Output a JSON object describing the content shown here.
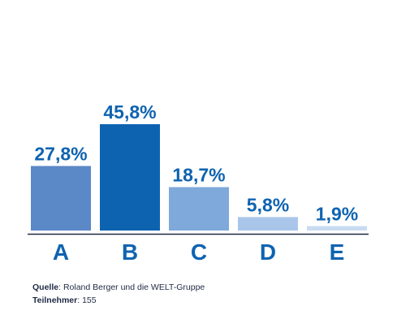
{
  "chart_data": {
    "type": "bar",
    "categories": [
      "A",
      "B",
      "C",
      "D",
      "E"
    ],
    "values": [
      27.8,
      45.8,
      18.7,
      5.8,
      1.9
    ],
    "value_labels": [
      "27,8%",
      "45,8%",
      "18,7%",
      "5,8%",
      "1,9%"
    ],
    "bar_colors": [
      "#5b88c6",
      "#0e63b0",
      "#7ea9da",
      "#a9c6ea",
      "#c8dbf2"
    ],
    "label_color": "#0e63b0",
    "axis_color": "#1f2a44",
    "ylim": [
      0,
      50
    ],
    "grid": false,
    "title": "",
    "xlabel": "",
    "ylabel": ""
  },
  "footer": {
    "source_label": "Quelle",
    "source_value": ": Roland Berger und die WELT-Gruppe",
    "participants_label": "Teilnehmer",
    "participants_value": ": 155"
  }
}
